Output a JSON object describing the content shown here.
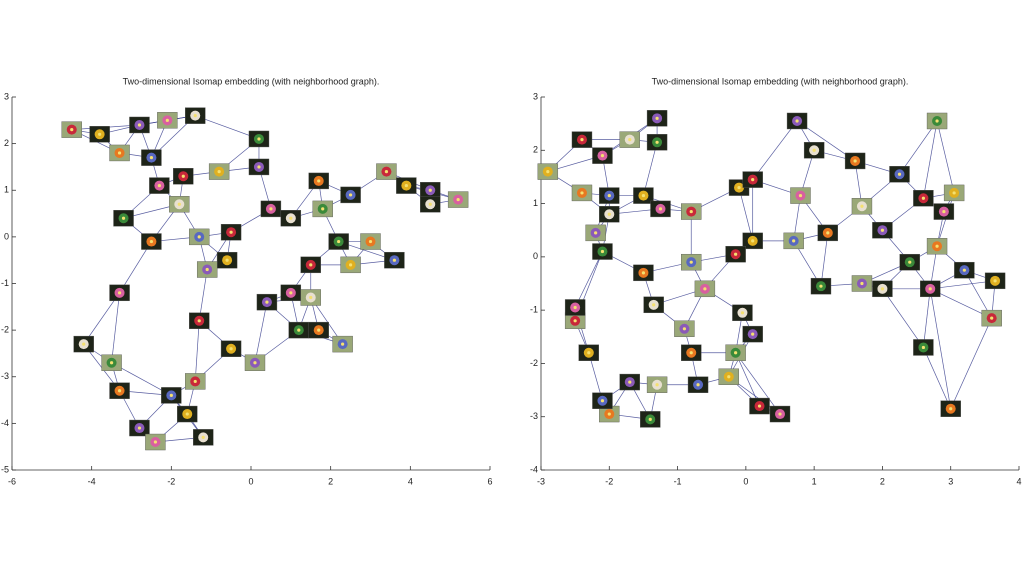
{
  "chart_data": [
    {
      "type": "scatter",
      "title": "Two-dimensional Isomap embedding (with neighborhood graph).",
      "x": [
        -4.5,
        -3.8,
        -2.8,
        -2.1,
        -1.4,
        0.2,
        -3.3,
        -2.5,
        -1.7,
        -0.8,
        0.2,
        -2.3,
        -1.8,
        -3.2,
        -2.5,
        -1.3,
        -0.5,
        -0.6,
        -1.1,
        0.5,
        1,
        1.8,
        1.7,
        2.5,
        3.4,
        3.9,
        4.5,
        5.2,
        4.5,
        2.2,
        3.0,
        3.6,
        1.5,
        2.5,
        0.4,
        1.0,
        1.5,
        1.2,
        1.7,
        2.3,
        -1.3,
        -0.5,
        0.1,
        -3.3,
        -4.2,
        -3.5,
        -3.3,
        -2.0,
        -1.4,
        -1.6,
        -2.8,
        -2.4,
        -1.2
      ],
      "values": [
        2.3,
        2.2,
        2.4,
        2.5,
        2.6,
        2.1,
        1.8,
        1.7,
        1.3,
        1.4,
        1.5,
        1.1,
        0.7,
        0.4,
        -0.1,
        0,
        0.1,
        -0.5,
        -0.7,
        0.6,
        0.4,
        0.6,
        1.2,
        0.9,
        1.4,
        1.1,
        1,
        0.8,
        0.7,
        -0.1,
        -0.1,
        -0.5,
        -0.6,
        -0.6,
        -1.4,
        -1.2,
        -1.3,
        -2,
        -2,
        -2.3,
        -1.8,
        -2.4,
        -2.7,
        -1.2,
        -2.3,
        -2.7,
        -3.3,
        -3.4,
        -3.1,
        -3.8,
        -4.1,
        -4.4,
        -4.3
      ],
      "xlim": [
        -6,
        6
      ],
      "xticks": [
        -6,
        -4,
        -2,
        0,
        2,
        4,
        6
      ],
      "ylim": [
        -5,
        3
      ],
      "yticks": [
        -5,
        -4,
        -3,
        -2,
        -1,
        0,
        1,
        2,
        3
      ],
      "point_palette": [
        "#c8283a",
        "#e0b020",
        "#8a5ab8",
        "#d860a0",
        "#e8e0d0",
        "#3a8a3a",
        "#e87820",
        "#5868c0"
      ],
      "edge_color": "#2e3488"
    },
    {
      "type": "scatter",
      "title": "Two-dimensional Isomap embedding (with neighborhood graph).",
      "x": [
        -2.9,
        -2.4,
        -2.1,
        -1.7,
        -1.3,
        -1.3,
        -2.4,
        -2.0,
        -1.5,
        -0.8,
        -1.25,
        -2.0,
        -2.2,
        -2.1,
        -1.5,
        -0.8,
        -0.1,
        0.1,
        0.8,
        1.0,
        0.75,
        2.8,
        1.6,
        2.25,
        3.05,
        2.6,
        2.9,
        1.7,
        2.0,
        2.4,
        2.8,
        3.2,
        3.65,
        3.6,
        2.7,
        2.0,
        1.7,
        1.1,
        1.2,
        0.7,
        0.1,
        -0.15,
        -0.6,
        -0.05,
        0.1,
        -0.15,
        -0.8,
        -0.7,
        -0.25,
        0.2,
        0.5,
        -1.3,
        -1.7,
        -1.4,
        -2.0,
        -2.1,
        -2.3,
        -2.5,
        -2.5,
        -1.35,
        -0.9,
        2.6,
        3.0
      ],
      "values": [
        1.6,
        2.2,
        1.9,
        2.2,
        2.6,
        2.15,
        1.2,
        1.15,
        1.15,
        0.85,
        0.9,
        0.8,
        0.45,
        0.1,
        -0.3,
        -0.1,
        1.3,
        1.45,
        1.15,
        2.0,
        2.55,
        2.55,
        1.8,
        1.55,
        1.2,
        1.1,
        0.85,
        0.95,
        0.5,
        -0.1,
        0.2,
        -0.25,
        -0.45,
        -1.15,
        -0.6,
        -0.6,
        -0.5,
        -0.55,
        0.45,
        0.3,
        0.3,
        0.05,
        -0.6,
        -1.05,
        -1.45,
        -1.8,
        -1.8,
        -2.4,
        -2.25,
        -2.8,
        -2.95,
        -2.4,
        -2.35,
        -3.05,
        -2.95,
        -2.7,
        -1.8,
        -1.2,
        -0.95,
        -0.9,
        -1.35,
        -1.7,
        -2.85
      ],
      "xlim": [
        -3,
        4
      ],
      "xticks": [
        -3,
        -2,
        -1,
        0,
        1,
        2,
        3,
        4
      ],
      "ylim": [
        -4,
        3
      ],
      "yticks": [
        -4,
        -3,
        -2,
        -1,
        0,
        1,
        2,
        3
      ],
      "point_palette": [
        "#e0b020",
        "#c8283a",
        "#d860a0",
        "#e8e0d0",
        "#8a5ab8",
        "#3a8a3a",
        "#e87820",
        "#5868c0"
      ],
      "edge_color": "#2e3488"
    }
  ]
}
